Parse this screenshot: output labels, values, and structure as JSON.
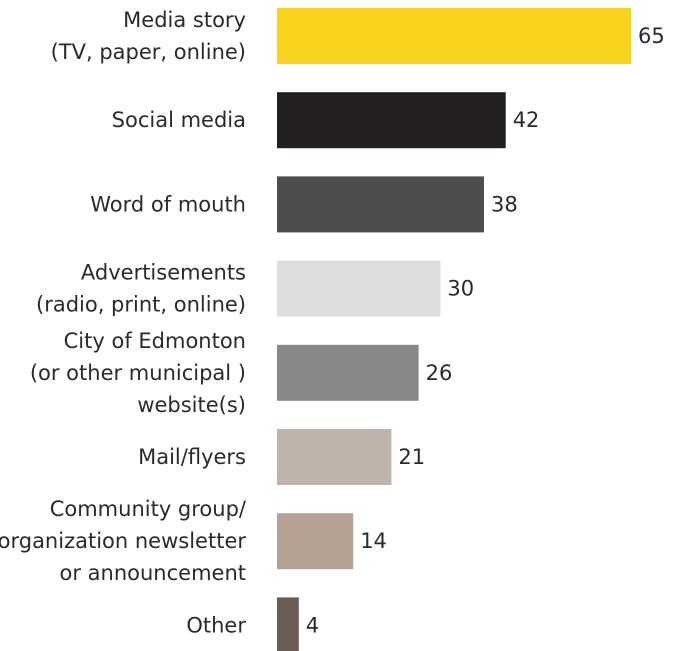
{
  "chart_data": {
    "type": "bar",
    "orientation": "horizontal",
    "categories": [
      [
        "Media story",
        "(TV, paper, online)"
      ],
      [
        "Social media"
      ],
      [
        "Word of mouth"
      ],
      [
        "Advertisements",
        "(radio, print, online)"
      ],
      [
        "City of Edmonton",
        "(or other municipal )",
        "website(s)"
      ],
      [
        "Mail/flyers"
      ],
      [
        "Community group/",
        "organization newsletter",
        "or announcement"
      ],
      [
        "Other"
      ]
    ],
    "values": [
      65,
      42,
      38,
      30,
      26,
      21,
      14,
      4
    ],
    "bar_colors": [
      "#f8d41f",
      "#231f20",
      "#4d4d4d",
      "#dddddd",
      "#888888",
      "#c0b4aa",
      "#b5a295",
      "#6b5d55"
    ],
    "xlim": [
      0,
      65
    ],
    "title": "",
    "xlabel": "",
    "ylabel": "",
    "grid": false,
    "legend": "none"
  }
}
